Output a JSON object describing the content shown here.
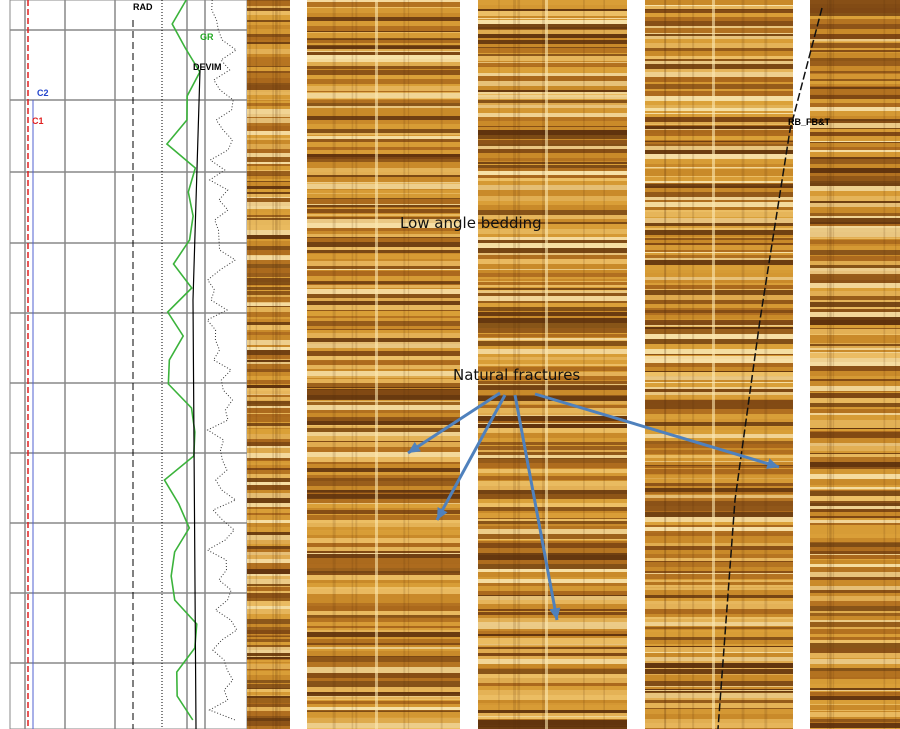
{
  "track_labels": {
    "rad": "RAD",
    "gr": "GR",
    "devim": "DEVIM",
    "c2": "C2",
    "c1": "C1",
    "rb": "RB_FB&T"
  },
  "annotations": {
    "bedding": "Low angle bedding",
    "fractures": "Natural fractures"
  }
}
